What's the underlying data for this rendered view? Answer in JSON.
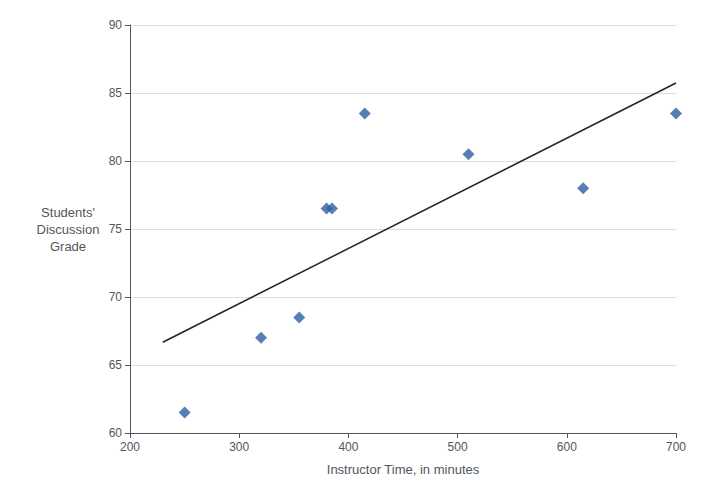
{
  "chart_data": {
    "type": "scatter",
    "xlabel": "Instructor Time, in minutes",
    "ylabel": "Students'\nDiscussion\nGrade",
    "xlim": [
      200,
      700
    ],
    "ylim": [
      60,
      90
    ],
    "xticks": [
      200,
      300,
      400,
      500,
      600,
      700
    ],
    "yticks": [
      60,
      65,
      70,
      75,
      80,
      85,
      90
    ],
    "grid": "y",
    "series": [
      {
        "type": "scatter",
        "color": "#2E5FA3",
        "marker": "diamond",
        "x": [
          250,
          320,
          355,
          380,
          385,
          415,
          510,
          615,
          700
        ],
        "values": [
          61.5,
          67,
          68.5,
          76.5,
          76.5,
          83.5,
          80.5,
          78,
          83.5
        ]
      },
      {
        "type": "line",
        "color": "#222222",
        "line_style": "solid",
        "x": [
          230,
          700
        ],
        "values": [
          66.673,
          85.7365
        ]
      }
    ]
  }
}
